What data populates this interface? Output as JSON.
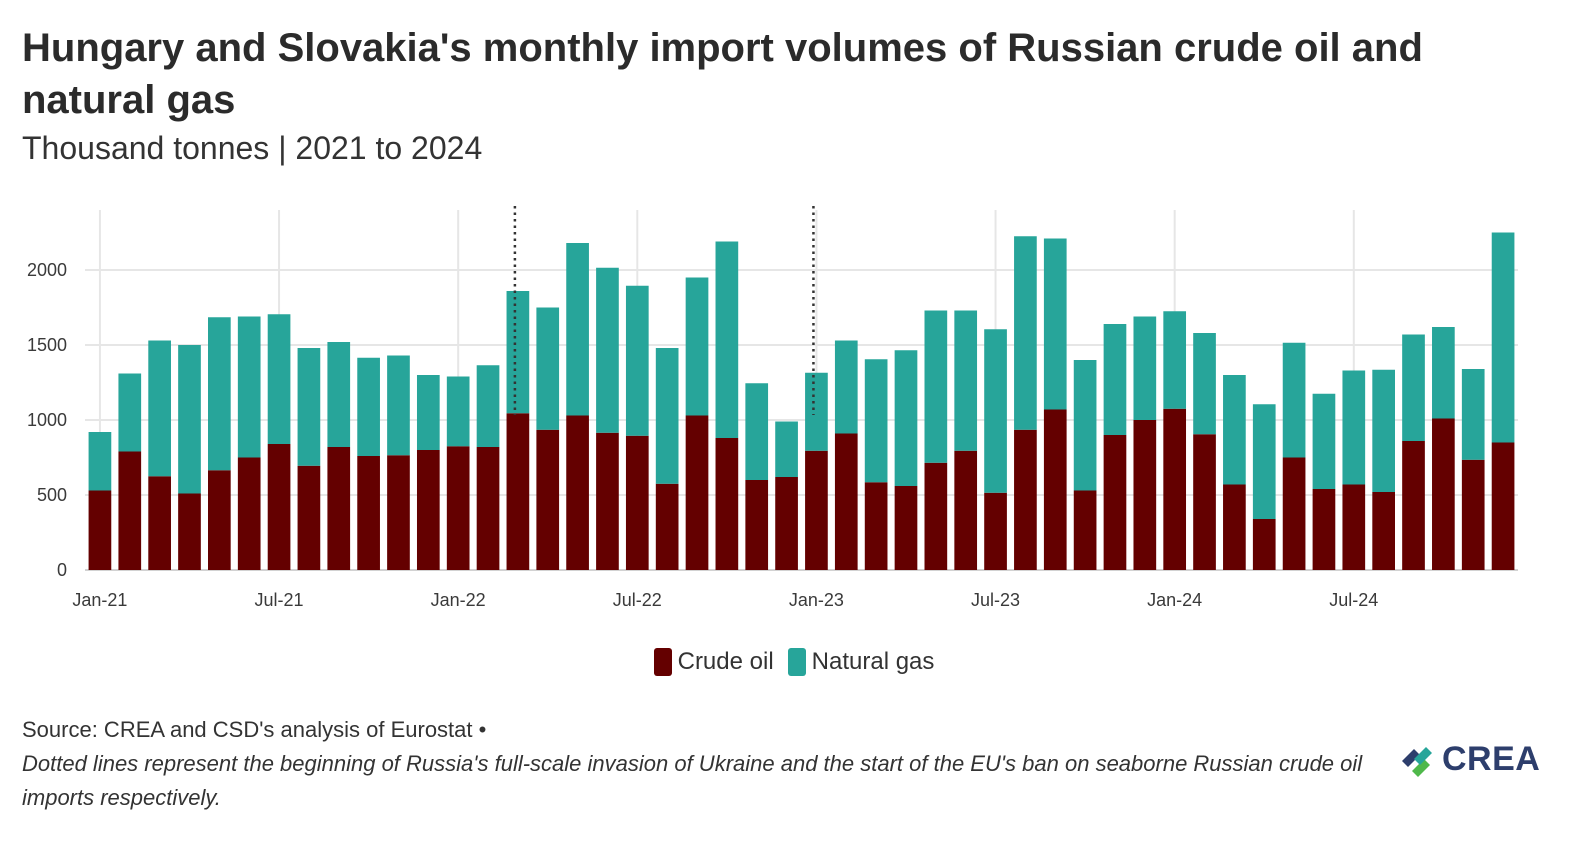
{
  "title": "Hungary and Slovakia's monthly import volumes of Russian crude oil and natural gas",
  "subtitle": "Thousand tonnes | 2021 to 2024",
  "source": "Source: CREA and CSD's analysis of Eurostat •",
  "note": "Dotted lines represent the beginning of Russia's full-scale invasion of Ukraine and the start of the EU's ban on seaborne Russian crude oil imports respectively.",
  "logo": {
    "text": "CREA",
    "icon": "crea-leaf-icon"
  },
  "colors": {
    "crude": "#640000",
    "gas": "#27a59a",
    "grid": "#e6e6e6",
    "dotted": "#333333"
  },
  "chart_data": {
    "type": "bar",
    "stacked": true,
    "title": "Hungary and Slovakia's monthly import volumes of Russian crude oil and natural gas",
    "subtitle": "Thousand tonnes | 2021 to 2024",
    "xlabel": "",
    "ylabel": "",
    "ylim": [
      0,
      2400
    ],
    "yticks": [
      0,
      500,
      1000,
      1500,
      2000
    ],
    "xticks": [
      {
        "label": "Jan-21",
        "index": 0
      },
      {
        "label": "Jul-21",
        "index": 6
      },
      {
        "label": "Jan-22",
        "index": 12
      },
      {
        "label": "Jul-22",
        "index": 18
      },
      {
        "label": "Jan-23",
        "index": 24
      },
      {
        "label": "Jul-23",
        "index": 30
      },
      {
        "label": "Jan-24",
        "index": 36
      },
      {
        "label": "Jul-24",
        "index": 42
      }
    ],
    "categories": [
      "2021-01",
      "2021-02",
      "2021-03",
      "2021-04",
      "2021-05",
      "2021-06",
      "2021-07",
      "2021-08",
      "2021-09",
      "2021-10",
      "2021-11",
      "2021-12",
      "2022-01",
      "2022-02",
      "2022-03",
      "2022-04",
      "2022-05",
      "2022-06",
      "2022-07",
      "2022-08",
      "2022-09",
      "2022-10",
      "2022-11",
      "2022-12",
      "2023-01",
      "2023-02",
      "2023-03",
      "2023-04",
      "2023-05",
      "2023-06",
      "2023-07",
      "2023-08",
      "2023-09",
      "2023-10",
      "2023-11",
      "2023-12",
      "2024-01",
      "2024-02",
      "2024-03",
      "2024-04",
      "2024-05",
      "2024-06",
      "2024-07",
      "2024-08",
      "2024-09",
      "2024-10",
      "2024-11",
      "2024-12"
    ],
    "series": [
      {
        "name": "Crude oil",
        "color": "#640000",
        "values": [
          530,
          790,
          625,
          510,
          665,
          750,
          840,
          695,
          820,
          760,
          765,
          800,
          825,
          820,
          1045,
          935,
          1030,
          915,
          895,
          575,
          1030,
          880,
          600,
          620,
          795,
          910,
          585,
          560,
          715,
          795,
          515,
          935,
          1070,
          530,
          900,
          1000,
          1075,
          905,
          570,
          340,
          750,
          540,
          570,
          520,
          860,
          1010,
          735,
          850
        ]
      },
      {
        "name": "Natural gas",
        "color": "#27a59a",
        "values": [
          390,
          520,
          905,
          990,
          1020,
          940,
          865,
          785,
          700,
          655,
          665,
          500,
          465,
          545,
          815,
          815,
          1150,
          1100,
          1000,
          905,
          920,
          1310,
          645,
          370,
          520,
          620,
          820,
          905,
          1015,
          935,
          1090,
          1290,
          1140,
          870,
          740,
          690,
          650,
          675,
          730,
          765,
          765,
          635,
          760,
          815,
          710,
          610,
          605,
          1400
        ]
      }
    ],
    "vlines": [
      {
        "position": 13.9,
        "style": "dotted",
        "label": ""
      },
      {
        "position": 23.9,
        "style": "dotted",
        "label": ""
      }
    ],
    "legend": {
      "position": "bottom",
      "entries": [
        "Crude oil",
        "Natural gas"
      ]
    },
    "grid": true
  }
}
